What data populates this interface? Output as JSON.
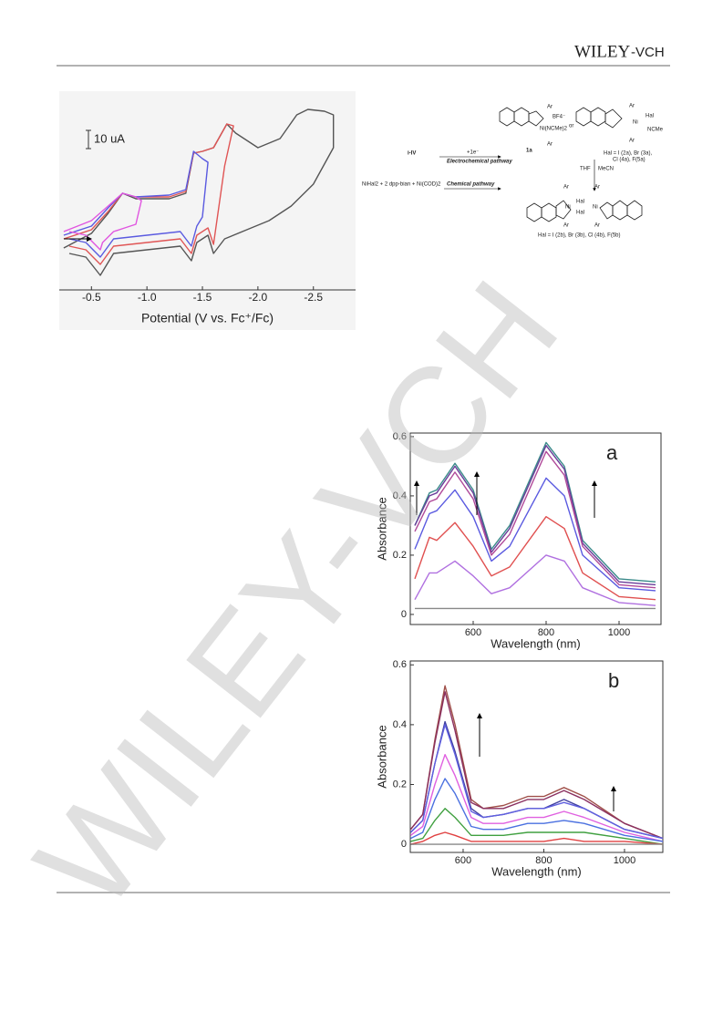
{
  "header": {
    "logo_main": "WILEY",
    "logo_suffix": "-VCH"
  },
  "watermark": "WILEY-VCH",
  "scheme": {
    "ar1": "Ar",
    "ar2": "Ar",
    "bf4": "BF4⁻",
    "ni_ncme": "Ni(NCMe)2",
    "label_1a": "1a",
    "or": "or",
    "ar3": "Ar",
    "ar4": "Ar",
    "hal_a": "Hal",
    "ncme": "NCMe",
    "ni_a": "Ni",
    "hal_list_a": "Hal = I (2a), Br (3a),",
    "hal_list_a2": "Cl (4a), F(5a)",
    "steps": "i-IV",
    "electron": "+1e⁻",
    "electrochemical": "Electrochemical pathway",
    "reagents": "NiHal2 + 2 dpp-bian + Ni(COD)2",
    "chemical": "Chemical pathway",
    "thf": "THF",
    "mecn": "MeCN",
    "ar5": "Ar",
    "ar6": "Ar",
    "ar7": "Ar",
    "ar8": "Ar",
    "hal_b1": "Hal",
    "hal_b2": "Hal",
    "ni_b1": "Ni",
    "ni_b2": "Ni",
    "hal_list_b": "Hal = I (2b), Br (3b), Cl (4b), F(5b)"
  },
  "chart_data": [
    {
      "type": "line",
      "xlabel": "Potential (V vs. Fc⁺/Fc)",
      "xlim": [
        -0.21,
        -2.88
      ],
      "ylim": [
        -28,
        78.5
      ],
      "xticks": [
        -0.5,
        {
          "value": -1,
          "label": "-1.0"
        },
        -1.5,
        {
          "value": -2,
          "label": "-2.0"
        },
        -2.5
      ],
      "scale_bar": {
        "value": 10,
        "label": "10 uA"
      },
      "series": [
        {
          "color": "#555555",
          "x": [
            -0.25,
            -0.5,
            -0.65,
            -0.78,
            -0.9,
            -1.2,
            -1.35,
            -1.42,
            -1.5,
            -1.6,
            -1.72,
            -1.8,
            -2.0,
            -2.2,
            -2.35,
            -2.45,
            -2.6,
            -2.68,
            -2.68,
            -2.5,
            -2.3,
            -2.1,
            -1.9,
            -1.7,
            -1.6,
            -1.55,
            -1.45,
            -1.4,
            -1.3,
            -1.0,
            -0.7,
            -0.58,
            -0.45,
            -0.3
          ],
          "values": [
            -5,
            3,
            14,
            25,
            22,
            22,
            25,
            47,
            48,
            50,
            63,
            58,
            50,
            55,
            68,
            71,
            70,
            68,
            50,
            30,
            18,
            10,
            5,
            0,
            -8,
            2,
            -2,
            -12,
            -4,
            -6,
            -8,
            -20,
            -10,
            -8
          ]
        },
        {
          "color": "#e05555",
          "x": [
            -0.25,
            -0.5,
            -0.65,
            -0.78,
            -0.9,
            -1.2,
            -1.35,
            -1.42,
            -1.5,
            -1.6,
            -1.72,
            -1.78,
            -1.7,
            -1.6,
            -1.55,
            -1.45,
            -1.4,
            -1.3,
            -1.0,
            -0.7,
            -0.58,
            -0.45,
            -0.3
          ],
          "values": [
            0,
            5,
            15,
            25,
            23,
            23,
            26,
            47,
            48,
            50,
            63,
            62,
            40,
            -3,
            6,
            2,
            -8,
            0,
            -2,
            -4,
            -14,
            -6,
            -4
          ]
        },
        {
          "color": "#5a5ae0",
          "x": [
            -0.25,
            -0.5,
            -0.65,
            -0.78,
            -0.9,
            -1.2,
            -1.35,
            -1.42,
            -1.5,
            -1.55,
            -1.5,
            -1.45,
            -1.4,
            -1.3,
            -1.0,
            -0.7,
            -0.58,
            -0.45,
            -0.3
          ],
          "values": [
            2,
            7,
            17,
            25,
            23,
            24,
            27,
            48,
            44,
            42,
            12,
            7,
            -4,
            4,
            2,
            0,
            -10,
            -2,
            0
          ]
        },
        {
          "color": "#e055e0",
          "x": [
            -0.25,
            -0.5,
            -0.65,
            -0.78,
            -0.9,
            -0.95,
            -0.9,
            -0.8,
            -0.7,
            -0.6,
            -0.58,
            -0.45,
            -0.3
          ],
          "values": [
            4,
            10,
            18,
            25,
            23,
            21,
            8,
            6,
            4,
            -2,
            -6,
            2,
            4
          ]
        }
      ]
    },
    {
      "type": "line",
      "panel": "a",
      "xlabel": "Wavelength (nm)",
      "ylabel": "Absorbance",
      "xlim": [
        427.5,
        1115
      ],
      "ylim": [
        -0.034,
        0.612
      ],
      "xticks": [
        600,
        800,
        1000
      ],
      "yticks": [
        0,
        0.2,
        0.4,
        0.6
      ],
      "x": [
        440,
        480,
        500,
        550,
        600,
        650,
        700,
        800,
        850,
        900,
        1000,
        1100
      ],
      "series": [
        {
          "color": "#3a8a8a",
          "values": [
            0.3,
            0.41,
            0.42,
            0.51,
            0.42,
            0.22,
            0.3,
            0.58,
            0.5,
            0.25,
            0.12,
            0.11
          ]
        },
        {
          "color": "#6a3d9a",
          "values": [
            0.3,
            0.4,
            0.41,
            0.5,
            0.41,
            0.21,
            0.29,
            0.57,
            0.49,
            0.24,
            0.11,
            0.1
          ]
        },
        {
          "color": "#b04a9a",
          "values": [
            0.28,
            0.38,
            0.39,
            0.48,
            0.39,
            0.2,
            0.27,
            0.55,
            0.47,
            0.23,
            0.1,
            0.09
          ]
        },
        {
          "color": "#5a5ae0",
          "values": [
            0.22,
            0.34,
            0.35,
            0.42,
            0.33,
            0.18,
            0.23,
            0.46,
            0.4,
            0.2,
            0.09,
            0.08
          ]
        },
        {
          "color": "#e05050",
          "values": [
            0.12,
            0.26,
            0.25,
            0.31,
            0.23,
            0.13,
            0.16,
            0.33,
            0.29,
            0.14,
            0.06,
            0.05
          ]
        },
        {
          "color": "#b070e0",
          "values": [
            0.05,
            0.14,
            0.14,
            0.18,
            0.13,
            0.07,
            0.09,
            0.2,
            0.18,
            0.09,
            0.04,
            0.03
          ]
        },
        {
          "color": "#888888",
          "values": [
            0.02,
            0.02,
            0.02,
            0.02,
            0.02,
            0.02,
            0.02,
            0.02,
            0.02,
            0.02,
            0.02,
            0.02
          ]
        }
      ]
    },
    {
      "type": "line",
      "panel": "b",
      "xlabel": "Wavelength (nm)",
      "ylabel": "Absorbance",
      "xlim": [
        469,
        1095
      ],
      "ylim": [
        -0.027,
        0.613
      ],
      "xticks": [
        600,
        800,
        1000
      ],
      "yticks": [
        0,
        0.2,
        0.4,
        0.6
      ],
      "x": [
        470,
        500,
        530,
        555,
        580,
        620,
        650,
        700,
        760,
        800,
        850,
        900,
        1000,
        1095
      ],
      "series": [
        {
          "color": "#a0504a",
          "values": [
            0.05,
            0.1,
            0.35,
            0.53,
            0.4,
            0.15,
            0.12,
            0.13,
            0.16,
            0.16,
            0.19,
            0.16,
            0.07,
            0.02
          ]
        },
        {
          "color": "#8a3060",
          "values": [
            0.05,
            0.1,
            0.34,
            0.51,
            0.38,
            0.14,
            0.12,
            0.12,
            0.15,
            0.15,
            0.18,
            0.15,
            0.07,
            0.02
          ]
        },
        {
          "color": "#4040a0",
          "values": [
            0.04,
            0.08,
            0.27,
            0.41,
            0.31,
            0.12,
            0.09,
            0.1,
            0.12,
            0.12,
            0.15,
            0.12,
            0.05,
            0.02
          ]
        },
        {
          "color": "#6060e0",
          "values": [
            0.04,
            0.08,
            0.27,
            0.4,
            0.3,
            0.11,
            0.09,
            0.1,
            0.12,
            0.12,
            0.14,
            0.12,
            0.05,
            0.02
          ]
        },
        {
          "color": "#e060e0",
          "values": [
            0.03,
            0.06,
            0.2,
            0.3,
            0.23,
            0.09,
            0.07,
            0.07,
            0.09,
            0.09,
            0.11,
            0.09,
            0.04,
            0.01
          ]
        },
        {
          "color": "#4a70e0",
          "values": [
            0.02,
            0.04,
            0.15,
            0.22,
            0.17,
            0.06,
            0.05,
            0.05,
            0.07,
            0.07,
            0.08,
            0.07,
            0.03,
            0.01
          ]
        },
        {
          "color": "#40a040",
          "values": [
            0.01,
            0.02,
            0.08,
            0.12,
            0.09,
            0.03,
            0.03,
            0.03,
            0.04,
            0.04,
            0.04,
            0.04,
            0.02,
            0
          ]
        },
        {
          "color": "#e04040",
          "values": [
            0,
            0.01,
            0.03,
            0.04,
            0.03,
            0.01,
            0.01,
            0.01,
            0.01,
            0.01,
            0.02,
            0.01,
            0.01,
            0
          ]
        },
        {
          "color": "#888888",
          "values": [
            0,
            0,
            0,
            0,
            0,
            0,
            0,
            0,
            0,
            0,
            0,
            0,
            0,
            0
          ]
        }
      ]
    }
  ]
}
